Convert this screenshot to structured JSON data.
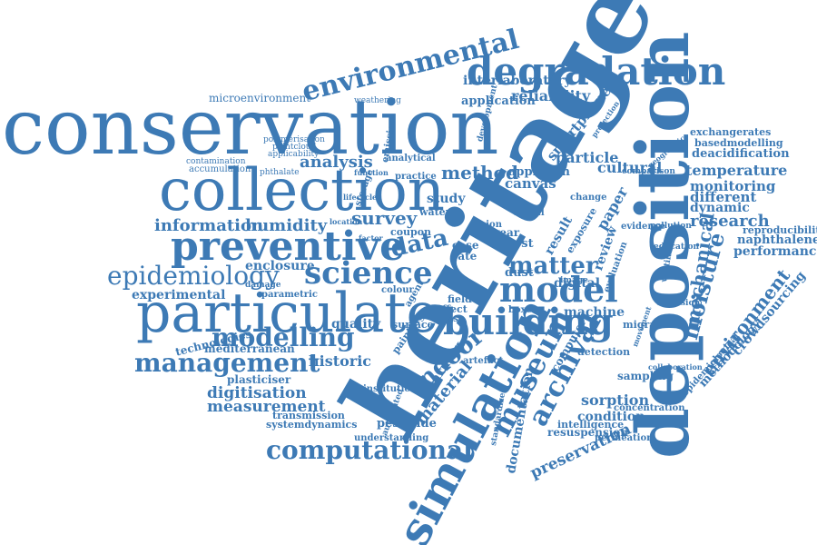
{
  "colors": {
    "word": "#3d7ab5",
    "background": "#ffffff"
  },
  "words": {
    "conservation": "conservation",
    "heritage": "heritage",
    "deposition": "deposition",
    "collection": "collection",
    "particulate": "particulate",
    "preventive": "preventive",
    "degradation": "degradation",
    "environmental": "environmental",
    "simulation": "simulation",
    "science": "science",
    "building": "building",
    "model": "model",
    "epidemiology": "epidemiology",
    "modelling": "modelling",
    "management": "management",
    "computational": "computational",
    "museum": "museum",
    "archival": "archival",
    "moisture": "moisture",
    "matter": "matter",
    "data": "data",
    "indoor": "indoor",
    "method": "method",
    "analysis": "analysis",
    "survey": "survey",
    "information": "information",
    "humidity": "humidity",
    "enclosure": "enclosure",
    "experimental": "experimental",
    "quality": "quality",
    "historic": "historic",
    "digitisation": "digitisation",
    "measurement": "measurement",
    "research": "research",
    "temperature": "temperature",
    "monitoring": "monitoring",
    "different": "different",
    "dynamic": "dynamic",
    "performance": "performance",
    "naphthalene": "naphthalene",
    "environment": "environment",
    "mechanical": "mechanical",
    "crowdsourcing": "crowdsourcing",
    "methodology": "methodology",
    "reliability": "reliability",
    "interlaboratory": "interlaboratory",
    "application": "application",
    "smartphone": "smartphone",
    "particle": "particle",
    "approach": "approach",
    "canvas": "canvas",
    "cultural": "cultural",
    "paper": "paper",
    "result": "result",
    "review": "review",
    "machine": "machine",
    "sorption": "sorption",
    "condition": "condition",
    "preservation": "preservation",
    "documentation": "documentation",
    "material": "material",
    "learning": "learning",
    "pesticide": "pesticide",
    "plasticiser": "plasticiser",
    "microenvironment": "microenvironment",
    "mediterranean": "mediterranean",
    "technologies": "technologies",
    "systemdynamics": "systemdynamics",
    "transmission": "transmission",
    "accumulation": "accumulation",
    "contamination": "contamination",
    "exchangerates": "exchangerates",
    "basedmodelling": "basedmodelling",
    "deacidification": "deacidification",
    "reproducibility": "reproducibility",
    "epidemiological": "epidemiological",
    "resuspension": "resuspension",
    "intelligence": "intelligence",
    "concentration": "concentration",
    "sampling": "sampling",
    "detection": "detection",
    "migration": "migration",
    "dust": "dust",
    "digital": "digital",
    "understanding": "understanding",
    "institution": "institution",
    "surface": "surface",
    "artefact": "artefact",
    "painting": "painting",
    "study": "study",
    "water": "water",
    "coupon": "coupon",
    "test": "test",
    "case": "case",
    "rate": "rate",
    "wear": "wear",
    "useful": "useful",
    "effect": "effect",
    "house": "house",
    "boxes": "boxes",
    "field": "field",
    "parametric": "parametric",
    "damage": "damage",
    "pointcloud": "pointcloud",
    "polymerisation": "polymerisation",
    "applicability": "applicability",
    "weathering": "weathering",
    "evidence": "evidence",
    "pollution": "pollution",
    "change": "change",
    "education": "education",
    "corrosion": "corrosion",
    "exposure": "exposure",
    "evaluation": "evaluation",
    "geographic": "geographic",
    "vision": "vision",
    "image": "image",
    "storage": "storage",
    "emission": "emission",
    "development": "development",
    "practice": "practice",
    "analytical": "analytical",
    "colour": "colour",
    "agent": "agent",
    "phthalate": "phthalate",
    "permeation": "permeation",
    "collaboration": "collaboration",
    "protection": "protection",
    "standardized": "standardized",
    "automated": "automated",
    "movement": "movement",
    "comparison": "comparison",
    "ventilation": "ventilation",
    "computer": "computer",
    "location": "location",
    "factor": "factor",
    "lifecycle": "lifecycle",
    "function": "function"
  }
}
